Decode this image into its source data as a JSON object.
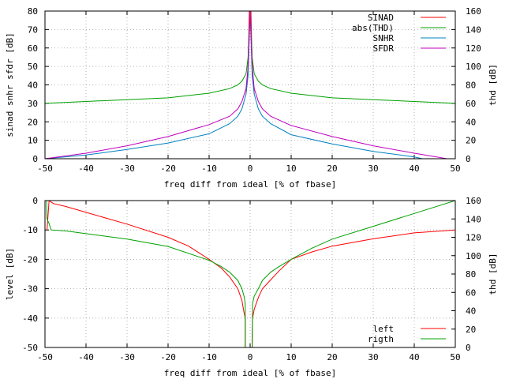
{
  "chart_data": [
    {
      "type": "line",
      "title": "",
      "xlabel": "freq diff from ideal [% of fbase]",
      "ylabel": "sinad snhr sfdr [dB]",
      "y2label": "thd [dB]",
      "xlim": [
        -50,
        50
      ],
      "ylim": [
        0,
        80
      ],
      "y2lim": [
        0,
        160
      ],
      "xticks": [
        "-50",
        "-40",
        "-30",
        "-20",
        "-10",
        "0",
        "10",
        "20",
        "30",
        "40",
        "50"
      ],
      "yticks": [
        "0",
        "10",
        "20",
        "30",
        "40",
        "50",
        "60",
        "70",
        "80"
      ],
      "y2ticks": [
        "0",
        "20",
        "40",
        "60",
        "80",
        "100",
        "120",
        "140",
        "160"
      ],
      "grid": true,
      "legend_position": "top-right",
      "series": [
        {
          "name": "SINAD",
          "color": "#ff0000",
          "axis": "y",
          "x": [
            -1,
            -0.6,
            -0.4,
            -0.2,
            0,
            0.2,
            0.4,
            0.6,
            1
          ],
          "y": [
            35,
            45,
            60,
            80,
            80,
            80,
            60,
            45,
            35
          ]
        },
        {
          "name": "abs(THD)",
          "color": "#00a000",
          "axis": "y2",
          "x": [
            -50,
            -40,
            -30,
            -20,
            -10,
            -5,
            -3,
            -2,
            -1,
            -0.5,
            0,
            0.5,
            1,
            2,
            3,
            5,
            10,
            20,
            30,
            40,
            50
          ],
          "y": [
            60,
            62,
            64,
            66,
            71,
            76,
            80,
            84,
            92,
            110,
            160,
            110,
            92,
            84,
            80,
            76,
            71,
            66,
            64,
            62,
            60
          ]
        },
        {
          "name": "SNHR",
          "color": "#0080c0",
          "axis": "y",
          "x": [
            -50,
            -40,
            -30,
            -20,
            -10,
            -5,
            -3,
            -2,
            -1,
            -0.5,
            0,
            0.5,
            1,
            2,
            3,
            5,
            10,
            20,
            30,
            40,
            42
          ],
          "y": [
            0,
            2,
            5,
            8.5,
            13.5,
            19,
            23,
            27,
            35,
            45,
            80,
            45,
            35,
            27,
            23,
            19,
            13,
            8,
            4,
            1,
            0
          ]
        },
        {
          "name": "SFDR",
          "color": "#c000c0",
          "axis": "y",
          "x": [
            -50,
            -40,
            -30,
            -20,
            -10,
            -5,
            -3,
            -2,
            -1,
            -0.5,
            0,
            0.5,
            1,
            2,
            3,
            5,
            10,
            20,
            30,
            40,
            48
          ],
          "y": [
            0,
            3,
            7,
            12,
            18.5,
            23,
            27,
            31,
            38,
            50,
            80,
            50,
            38,
            31,
            27,
            23,
            18,
            12,
            7,
            3,
            0
          ]
        }
      ]
    },
    {
      "type": "line",
      "title": "",
      "xlabel": "freq diff from ideal [% of fbase]",
      "ylabel": "level [dB]",
      "y2label": "thd [dB]",
      "xlim": [
        -50,
        50
      ],
      "ylim": [
        -50,
        0
      ],
      "y2lim": [
        0,
        160
      ],
      "xticks": [
        "-50",
        "-40",
        "-30",
        "-20",
        "-10",
        "0",
        "10",
        "20",
        "30",
        "40",
        "50"
      ],
      "yticks": [
        "-50",
        "-40",
        "-30",
        "-20",
        "-10",
        "0"
      ],
      "y2ticks": [
        "0",
        "20",
        "40",
        "60",
        "80",
        "100",
        "120",
        "140",
        "160"
      ],
      "grid": true,
      "legend_position": "bottom-right",
      "series": [
        {
          "name": "left",
          "color": "#ff0000",
          "axis": "y",
          "x": [
            -49.5,
            -49,
            -48,
            -45,
            -40,
            -30,
            -20,
            -15,
            -10,
            -7,
            -5,
            -3,
            -2,
            -1.5,
            -1.2,
            -1.2,
            -1,
            -0.5,
            0,
            0.5,
            0.6,
            1,
            2,
            3,
            5,
            7,
            10,
            15,
            20,
            30,
            40,
            50
          ],
          "y": [
            -10,
            0,
            -1,
            -2,
            -4,
            -8,
            -12.5,
            -15.5,
            -20,
            -23,
            -26,
            -30,
            -34,
            -38,
            -40,
            -50,
            -50,
            -50,
            -50,
            -50,
            -40,
            -37,
            -33,
            -30,
            -27,
            -24,
            -20,
            -17.5,
            -15.5,
            -13,
            -11,
            -10
          ]
        },
        {
          "name": "rigth",
          "color": "#00a000",
          "axis": "y2",
          "x": [
            -49.6,
            -49.5,
            -49,
            -48.5,
            -45,
            -40,
            -30,
            -20,
            -10,
            -7,
            -5,
            -3,
            -2,
            -1.5,
            -1.2,
            -1.2,
            -1,
            0,
            0.5,
            0.6,
            1,
            2,
            3,
            5,
            7,
            10,
            15,
            20,
            30,
            40,
            50
          ],
          "y": [
            160,
            140,
            135,
            128,
            127,
            124,
            118,
            110,
            95,
            88,
            82,
            73,
            64,
            56,
            48,
            0,
            0,
            0,
            0,
            48,
            56,
            64,
            73,
            82,
            88,
            96,
            108,
            118,
            132,
            146,
            160
          ]
        }
      ]
    }
  ]
}
